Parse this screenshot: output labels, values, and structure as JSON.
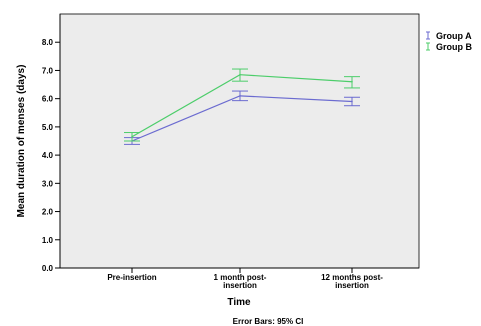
{
  "chart_data": {
    "type": "line",
    "xlabel": "Time",
    "ylabel": "Mean duration of menses (days)",
    "ylim": [
      0,
      9
    ],
    "yticks": [
      "0.0",
      "1.0",
      "2.0",
      "3.0",
      "4.0",
      "5.0",
      "6.0",
      "7.0",
      "8.0"
    ],
    "categories": [
      [
        "Pre-insertion"
      ],
      [
        "1 month post-",
        "insertion"
      ],
      [
        "12 months post-",
        "insertion"
      ]
    ],
    "series": [
      {
        "name": "Group A",
        "color": "#6b6bd0",
        "values": [
          4.5,
          6.1,
          5.9
        ],
        "ci_low": [
          4.38,
          5.93,
          5.75
        ],
        "ci_high": [
          4.62,
          6.27,
          6.05
        ]
      },
      {
        "name": "Group B",
        "color": "#4ccd6a",
        "values": [
          4.65,
          6.85,
          6.6
        ],
        "ci_low": [
          4.5,
          6.62,
          6.38
        ],
        "ci_high": [
          4.8,
          7.05,
          6.78
        ]
      }
    ],
    "footnote": "Error Bars: 95% CI",
    "plot_background": "#ececec",
    "legend_position": "top-right",
    "grid": false
  }
}
